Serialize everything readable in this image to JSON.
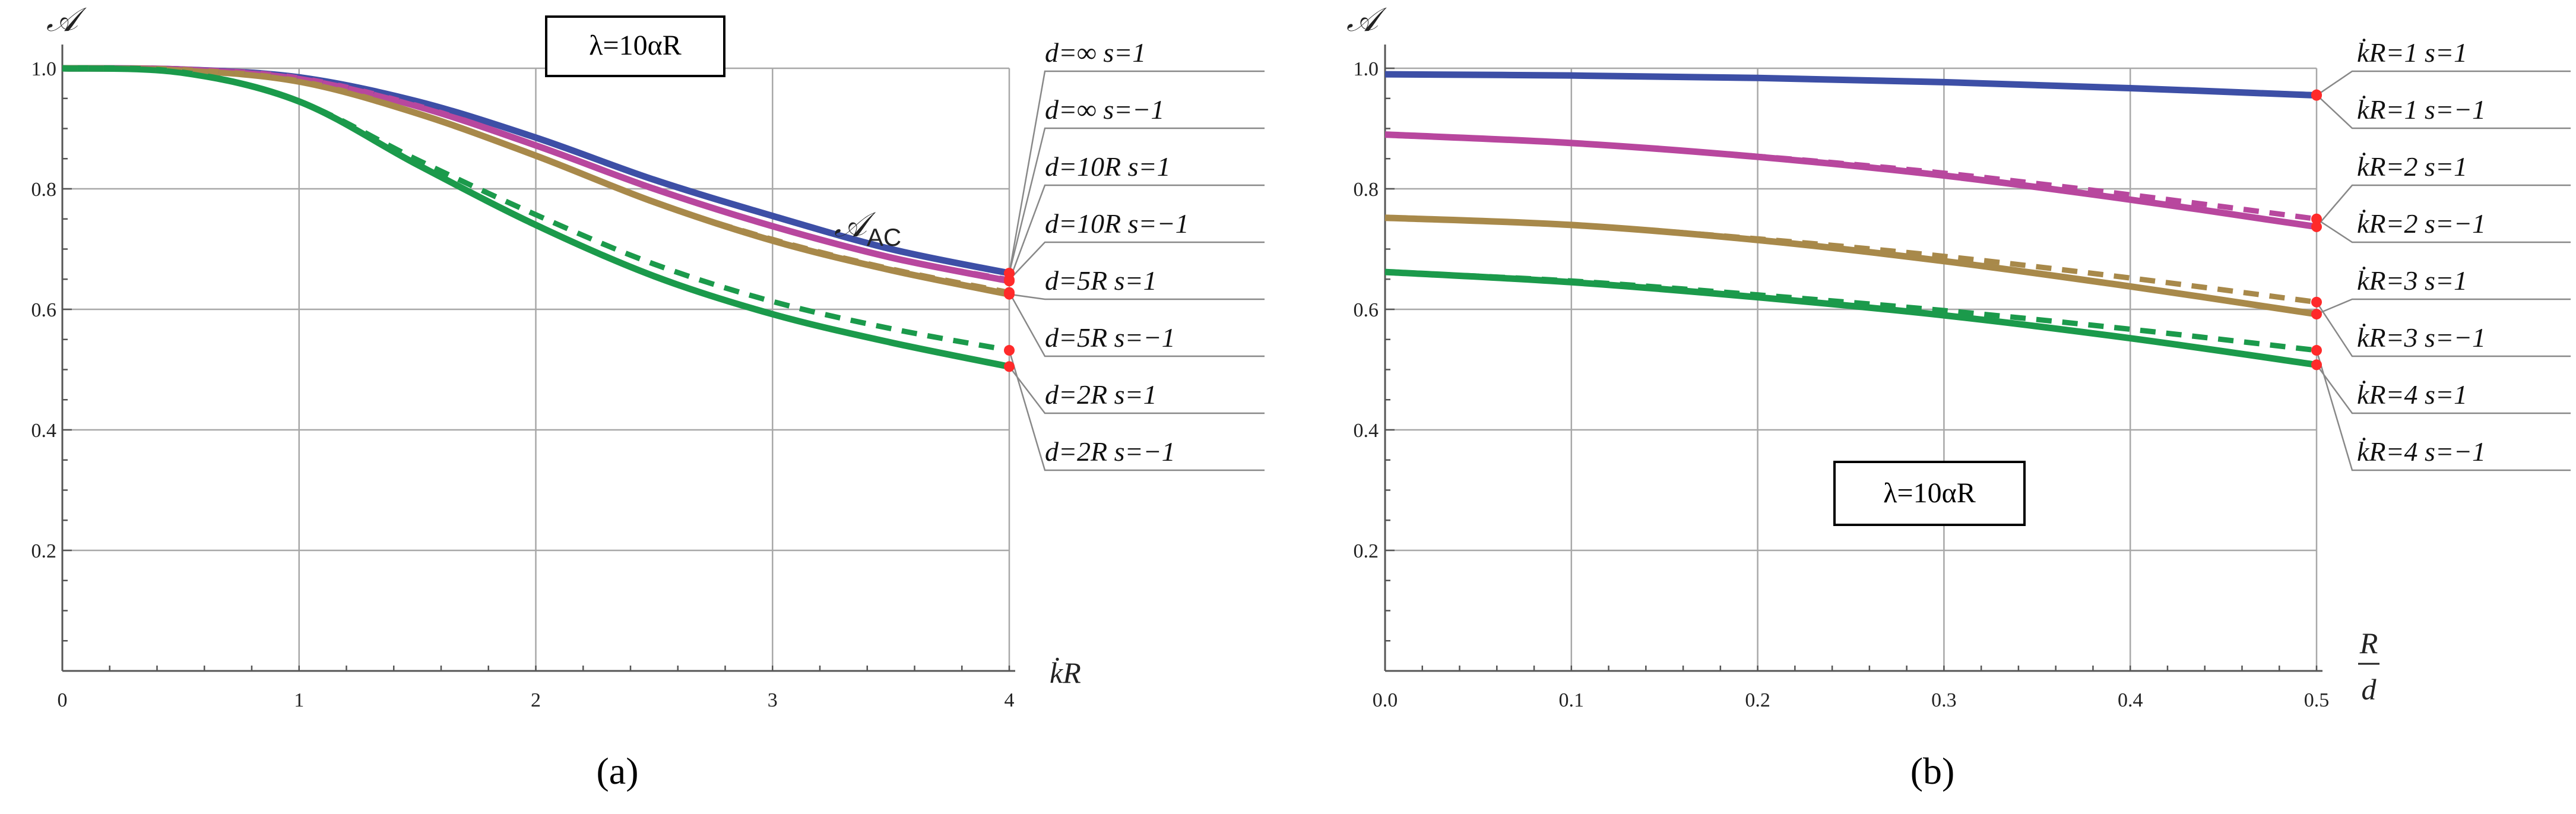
{
  "chart_data": [
    {
      "panel": "a",
      "type": "line",
      "caption": "(a)",
      "box_label": "λ=10αR",
      "annotation": {
        "text": "𝒜",
        "subscript": "AC"
      },
      "ylabel": "𝒜",
      "xlabel": "k̇R",
      "xlim": [
        0,
        4
      ],
      "ylim": [
        0,
        1.0
      ],
      "x_ticks": [
        "0",
        "1",
        "2",
        "3",
        "4"
      ],
      "y_ticks": [
        "0.2",
        "0.4",
        "0.6",
        "0.8",
        "1.0"
      ],
      "x": [
        0,
        0.5,
        1,
        1.5,
        2,
        2.5,
        3,
        3.5,
        4
      ],
      "series": [
        {
          "name": "d=∞ s=1",
          "color": "#3d4fa6",
          "dash": false,
          "values": [
            1.0,
            0.998,
            0.985,
            0.945,
            0.885,
            0.815,
            0.755,
            0.7,
            0.66
          ]
        },
        {
          "name": "d=∞ s=−1",
          "color": "#3d4fa6",
          "dash": true,
          "values": [
            1.0,
            0.998,
            0.985,
            0.945,
            0.885,
            0.815,
            0.755,
            0.7,
            0.66
          ]
        },
        {
          "name": "d=10R s=1",
          "color": "#b8479e",
          "dash": false,
          "values": [
            1.0,
            0.998,
            0.983,
            0.937,
            0.872,
            0.8,
            0.738,
            0.686,
            0.647
          ]
        },
        {
          "name": "d=10R s=−1",
          "color": "#b8479e",
          "dash": true,
          "values": [
            1.0,
            0.998,
            0.983,
            0.937,
            0.872,
            0.8,
            0.738,
            0.686,
            0.649
          ]
        },
        {
          "name": "d=5R s=1",
          "color": "#a8894a",
          "dash": false,
          "values": [
            1.0,
            0.997,
            0.978,
            0.925,
            0.855,
            0.778,
            0.714,
            0.665,
            0.625
          ]
        },
        {
          "name": "d=5R s=−1",
          "color": "#a8894a",
          "dash": true,
          "values": [
            1.0,
            0.997,
            0.978,
            0.925,
            0.855,
            0.778,
            0.716,
            0.667,
            0.628
          ]
        },
        {
          "name": "d=2R s=1",
          "color": "#1b9a4b",
          "dash": false,
          "values": [
            1.0,
            0.993,
            0.945,
            0.84,
            0.74,
            0.655,
            0.592,
            0.545,
            0.505
          ]
        },
        {
          "name": "d=2R s=−1",
          "color": "#1b9a4b",
          "dash": true,
          "values": [
            1.0,
            0.993,
            0.945,
            0.848,
            0.757,
            0.675,
            0.613,
            0.568,
            0.532
          ]
        }
      ],
      "legend": [
        "d=∞   s=1",
        "d=∞   s=−1",
        "d=10R   s=1",
        "d=10R   s=−1",
        "d=5R   s=1",
        "d=5R   s=−1",
        "d=2R   s=1",
        "d=2R   s=−1"
      ]
    },
    {
      "panel": "b",
      "type": "line",
      "caption": "(b)",
      "box_label": "λ=10αR",
      "ylabel": "𝒜",
      "xlabel_num": "R",
      "xlabel_den": "d",
      "xlim": [
        0,
        0.5
      ],
      "ylim": [
        0,
        1.0
      ],
      "x_ticks": [
        "0.0",
        "0.1",
        "0.2",
        "0.3",
        "0.4",
        "0.5"
      ],
      "y_ticks": [
        "0.2",
        "0.4",
        "0.6",
        "0.8",
        "1.0"
      ],
      "x": [
        0,
        0.1,
        0.2,
        0.3,
        0.4,
        0.5
      ],
      "series": [
        {
          "name": "k̇R=1 s=1",
          "color": "#3d4fa6",
          "dash": false,
          "values": [
            0.99,
            0.988,
            0.984,
            0.977,
            0.967,
            0.955
          ]
        },
        {
          "name": "k̇R=1 s=−1",
          "color": "#3d4fa6",
          "dash": true,
          "values": [
            0.99,
            0.988,
            0.984,
            0.977,
            0.967,
            0.956
          ]
        },
        {
          "name": "k̇R=2 s=1",
          "color": "#b8479e",
          "dash": false,
          "values": [
            0.89,
            0.876,
            0.853,
            0.822,
            0.782,
            0.737
          ]
        },
        {
          "name": "k̇R=2 s=−1",
          "color": "#b8479e",
          "dash": true,
          "values": [
            0.89,
            0.876,
            0.854,
            0.826,
            0.79,
            0.75
          ]
        },
        {
          "name": "k̇R=3 s=1",
          "color": "#a8894a",
          "dash": false,
          "values": [
            0.752,
            0.74,
            0.715,
            0.68,
            0.638,
            0.592
          ]
        },
        {
          "name": "k̇R=3 s=−1",
          "color": "#a8894a",
          "dash": true,
          "values": [
            0.752,
            0.74,
            0.717,
            0.688,
            0.652,
            0.612
          ]
        },
        {
          "name": "k̇R=4 s=1",
          "color": "#1b9a4b",
          "dash": false,
          "values": [
            0.662,
            0.645,
            0.62,
            0.59,
            0.552,
            0.508
          ]
        },
        {
          "name": "k̇R=4 s=−1",
          "color": "#1b9a4b",
          "dash": true,
          "values": [
            0.662,
            0.647,
            0.624,
            0.598,
            0.567,
            0.532
          ]
        }
      ],
      "legend": [
        "k̇R=1   s=1",
        "k̇R=1   s=−1",
        "k̇R=2   s=1",
        "k̇R=2   s=−1",
        "k̇R=3   s=1",
        "k̇R=3   s=−1",
        "k̇R=4   s=1",
        "k̇R=4   s=−1"
      ]
    }
  ]
}
